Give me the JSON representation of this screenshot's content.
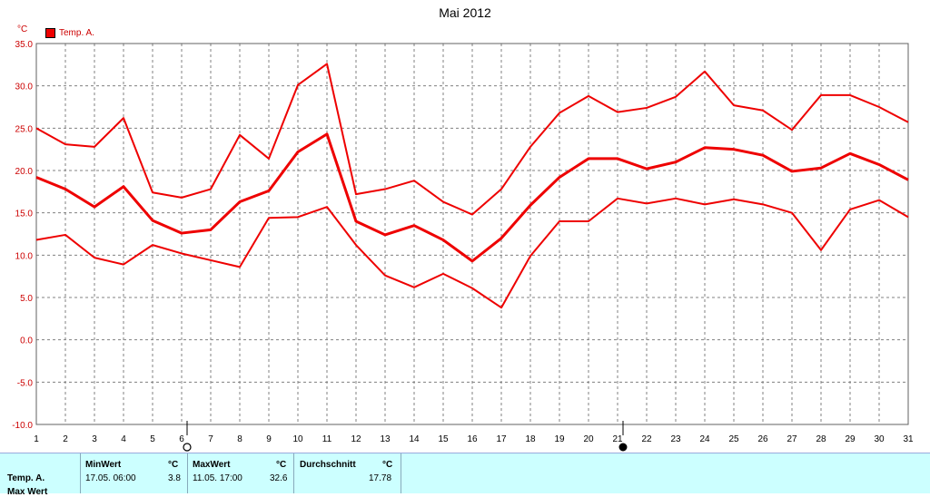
{
  "chart_data": {
    "type": "line",
    "title": "Mai 2012",
    "unit": "°C",
    "ylim": [
      -10,
      35
    ],
    "y_ticks": [
      "35.0",
      "30.0",
      "25.0",
      "20.0",
      "15.0",
      "10.0",
      "5.0",
      "0.0",
      "-5.0",
      "-10.0"
    ],
    "x": [
      1,
      2,
      3,
      4,
      5,
      6,
      7,
      8,
      9,
      10,
      11,
      12,
      13,
      14,
      15,
      16,
      17,
      18,
      19,
      20,
      21,
      22,
      23,
      24,
      25,
      26,
      27,
      28,
      29,
      30,
      31
    ],
    "legend": [
      {
        "label": "Temp. A.",
        "color": "#ee0000"
      }
    ],
    "grid": true,
    "moon_phases": [
      {
        "day": 6,
        "phase": "full"
      },
      {
        "day": 21,
        "phase": "new"
      }
    ],
    "series": [
      {
        "role": "max",
        "color": "#ee0000",
        "values": [
          25.0,
          23.1,
          22.8,
          26.2,
          17.4,
          16.8,
          17.8,
          24.2,
          21.4,
          30.1,
          32.6,
          17.2,
          17.8,
          18.8,
          16.3,
          14.8,
          17.8,
          22.8,
          26.8,
          28.8,
          26.9,
          27.4,
          28.7,
          31.7,
          27.7,
          27.1,
          24.8,
          28.9,
          28.9,
          27.5,
          25.7
        ]
      },
      {
        "role": "avg",
        "color": "#ee0000",
        "values": [
          19.2,
          17.8,
          15.7,
          18.1,
          14.1,
          12.6,
          13.0,
          16.3,
          17.6,
          22.2,
          24.3,
          14.0,
          12.4,
          13.5,
          11.8,
          9.3,
          12.0,
          15.9,
          19.2,
          21.4,
          21.4,
          20.2,
          21.0,
          22.7,
          22.5,
          21.8,
          19.9,
          20.3,
          22.0,
          20.7,
          18.9
        ]
      },
      {
        "role": "min",
        "color": "#ee0000",
        "values": [
          11.8,
          12.4,
          9.7,
          8.9,
          11.2,
          10.2,
          9.4,
          8.6,
          14.4,
          14.5,
          15.7,
          11.2,
          7.6,
          6.2,
          7.8,
          6.1,
          3.8,
          9.9,
          14.0,
          14.0,
          16.7,
          16.1,
          16.7,
          16.0,
          16.6,
          16.0,
          15.0,
          10.6,
          15.4,
          16.5,
          14.5
        ]
      }
    ]
  },
  "stats_table": {
    "row_label": "Temp. A.",
    "row_label2": "Max Wert",
    "min": {
      "header": "MinWert",
      "unit": "°C",
      "time": "17.05.  06:00",
      "value": "3.8"
    },
    "max": {
      "header": "MaxWert",
      "unit": "°C",
      "time": "11.05.  17:00",
      "value": "32.6"
    },
    "avg": {
      "header": "Durchschnitt",
      "unit": "°C",
      "value": "17.78"
    }
  }
}
